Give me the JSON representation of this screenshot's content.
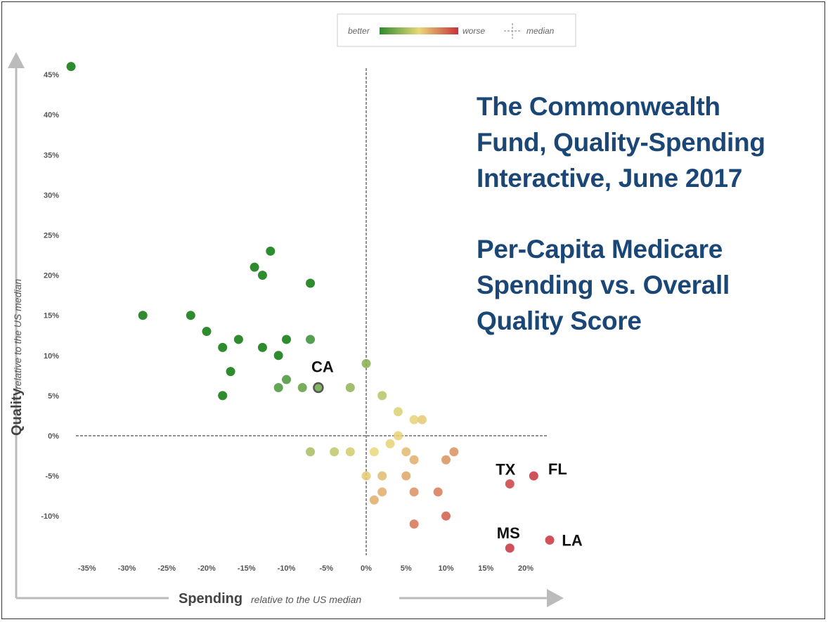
{
  "legend": {
    "better_label": "better",
    "worse_label": "worse",
    "median_label": "median",
    "gradient_colors": [
      "#2e8b2e",
      "#e8d878",
      "#c8323c"
    ]
  },
  "title": {
    "lines1": [
      "The Commonwealth",
      "Fund, Quality-Spending",
      "Interactive, June 2017"
    ],
    "lines2": [
      "Per-Capita Medicare",
      "Spending vs. Overall",
      "Quality Score"
    ]
  },
  "chart_data": {
    "type": "scatter",
    "title": "Per-Capita Medicare Spending vs. Overall Quality Score",
    "xlabel": "Spending",
    "xlabel_sub": "relative to the US median",
    "ylabel": "Quality",
    "ylabel_sub": "relative to the US median",
    "xlim": [
      -36,
      23
    ],
    "ylim": [
      -16,
      46
    ],
    "x_ticks": [
      -35,
      -30,
      -25,
      -20,
      -15,
      -10,
      -5,
      0,
      5,
      10,
      15,
      20
    ],
    "x_tick_labels": [
      "-35%",
      "-30%",
      "-25%",
      "-20%",
      "-15%",
      "-10%",
      "-5%",
      "0%",
      "5%",
      "10%",
      "15%",
      "20%"
    ],
    "y_ticks": [
      45,
      40,
      35,
      30,
      25,
      20,
      15,
      10,
      5,
      0,
      -5,
      -10
    ],
    "y_tick_labels": [
      "45%",
      "40%",
      "35%",
      "30%",
      "25%",
      "20%",
      "15%",
      "10%",
      "5%",
      "0%",
      "-5%",
      "-10%"
    ],
    "median_lines": {
      "x": 0,
      "y": 0
    },
    "points": [
      {
        "x": -37,
        "y": 46,
        "label": ""
      },
      {
        "x": -28,
        "y": 15,
        "label": ""
      },
      {
        "x": -22,
        "y": 15,
        "label": ""
      },
      {
        "x": -20,
        "y": 13,
        "label": ""
      },
      {
        "x": -18,
        "y": 11,
        "label": ""
      },
      {
        "x": -18,
        "y": 5,
        "label": ""
      },
      {
        "x": -17,
        "y": 8,
        "label": ""
      },
      {
        "x": -16,
        "y": 12,
        "label": ""
      },
      {
        "x": -14,
        "y": 21,
        "label": ""
      },
      {
        "x": -13,
        "y": 20,
        "label": ""
      },
      {
        "x": -13,
        "y": 11,
        "label": ""
      },
      {
        "x": -12,
        "y": 23,
        "label": ""
      },
      {
        "x": -11,
        "y": 10,
        "label": ""
      },
      {
        "x": -11,
        "y": 6,
        "label": ""
      },
      {
        "x": -10,
        "y": 12,
        "label": ""
      },
      {
        "x": -10,
        "y": 7,
        "label": ""
      },
      {
        "x": -8,
        "y": 6,
        "label": ""
      },
      {
        "x": -7,
        "y": 19,
        "label": ""
      },
      {
        "x": -7,
        "y": 12,
        "label": ""
      },
      {
        "x": -6,
        "y": 6,
        "label": "CA"
      },
      {
        "x": -2,
        "y": 6,
        "label": ""
      },
      {
        "x": 0,
        "y": 9,
        "label": ""
      },
      {
        "x": 2,
        "y": 5,
        "label": ""
      },
      {
        "x": 4,
        "y": 3,
        "label": ""
      },
      {
        "x": 6,
        "y": 2,
        "label": ""
      },
      {
        "x": 7,
        "y": 2,
        "label": ""
      },
      {
        "x": 4,
        "y": 0,
        "label": ""
      },
      {
        "x": 3,
        "y": -1,
        "label": ""
      },
      {
        "x": -7,
        "y": -2,
        "label": ""
      },
      {
        "x": -4,
        "y": -2,
        "label": ""
      },
      {
        "x": -2,
        "y": -2,
        "label": ""
      },
      {
        "x": 1,
        "y": -2,
        "label": ""
      },
      {
        "x": 5,
        "y": -2,
        "label": ""
      },
      {
        "x": 11,
        "y": -2,
        "label": ""
      },
      {
        "x": 6,
        "y": -3,
        "label": ""
      },
      {
        "x": 10,
        "y": -3,
        "label": ""
      },
      {
        "x": 0,
        "y": -5,
        "label": ""
      },
      {
        "x": 2,
        "y": -5,
        "label": ""
      },
      {
        "x": 5,
        "y": -5,
        "label": ""
      },
      {
        "x": 2,
        "y": -7,
        "label": ""
      },
      {
        "x": 6,
        "y": -7,
        "label": ""
      },
      {
        "x": 9,
        "y": -7,
        "label": ""
      },
      {
        "x": 1,
        "y": -8,
        "label": ""
      },
      {
        "x": 10,
        "y": -10,
        "label": ""
      },
      {
        "x": 6,
        "y": -11,
        "label": ""
      },
      {
        "x": 18,
        "y": -6,
        "label": "TX"
      },
      {
        "x": 21,
        "y": -5,
        "label": "FL"
      },
      {
        "x": 18,
        "y": -14,
        "label": "MS"
      },
      {
        "x": 23,
        "y": -13,
        "label": "LA"
      }
    ]
  }
}
